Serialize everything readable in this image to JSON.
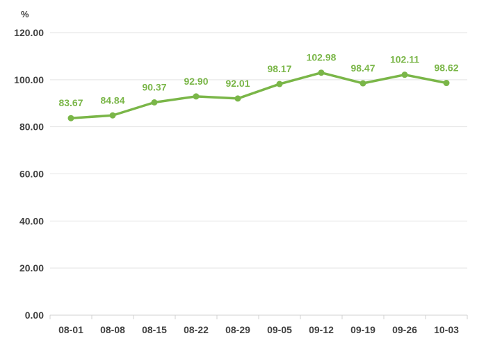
{
  "chart_data": {
    "type": "line",
    "title": "",
    "xlabel": "",
    "ylabel": "%",
    "categories": [
      "08-01",
      "08-08",
      "08-15",
      "08-22",
      "08-29",
      "09-05",
      "09-12",
      "09-19",
      "09-26",
      "10-03"
    ],
    "series": [
      {
        "name": "",
        "values": [
          83.67,
          84.84,
          90.37,
          92.9,
          92.01,
          98.17,
          102.98,
          98.47,
          102.11,
          98.62
        ],
        "labels": [
          "83.67",
          "84.84",
          "90.37",
          "92.90",
          "92.01",
          "98.17",
          "102.98",
          "98.47",
          "102.11",
          "98.62"
        ],
        "color": "#7ab648"
      }
    ],
    "ylim": [
      0,
      120
    ],
    "yticks": [
      0,
      20,
      40,
      60,
      80,
      100,
      120
    ],
    "ytick_labels": [
      "0.00",
      "20.00",
      "40.00",
      "60.00",
      "80.00",
      "100.00",
      "120.00"
    ],
    "grid": true,
    "legend": "none"
  }
}
